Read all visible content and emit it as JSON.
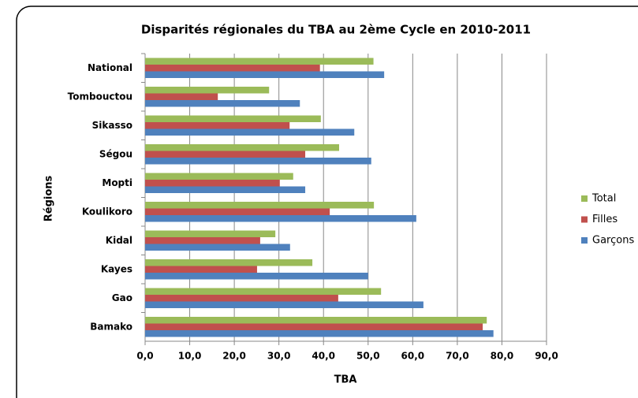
{
  "chart_data": {
    "type": "hbar",
    "title": "Disparités régionales du TBA au 2ème Cycle en 2010-2011",
    "xlabel": "TBA",
    "ylabel": "Régions",
    "categories": [
      "Bamako",
      "Gao",
      "Kayes",
      "Kidal",
      "Koulikoro",
      "Mopti",
      "Ségou",
      "Sikasso",
      "Tombouctou",
      "National"
    ],
    "series": [
      {
        "name": "Total",
        "color": "#9bbb59",
        "values": [
          76.6,
          52.9,
          37.5,
          29.2,
          51.3,
          33.2,
          43.5,
          39.4,
          27.8,
          51.2
        ]
      },
      {
        "name": "Filles",
        "color": "#c0504d",
        "values": [
          75.7,
          43.3,
          25.1,
          25.8,
          41.4,
          30.2,
          35.9,
          32.4,
          16.3,
          39.2
        ]
      },
      {
        "name": "Garçons",
        "color": "#4f81bd",
        "values": [
          78.1,
          62.4,
          50.0,
          32.5,
          60.8,
          35.9,
          50.7,
          46.9,
          34.7,
          53.6
        ]
      }
    ],
    "xlim": [
      0,
      90
    ],
    "xticks": [
      {
        "value": 0,
        "label": "0,0"
      },
      {
        "value": 10,
        "label": "10,0"
      },
      {
        "value": 20,
        "label": "20,0"
      },
      {
        "value": 30,
        "label": "30,0"
      },
      {
        "value": 40,
        "label": "40,0"
      },
      {
        "value": 50,
        "label": "50,0"
      },
      {
        "value": 60,
        "label": "60,0"
      },
      {
        "value": 70,
        "label": "70,0"
      },
      {
        "value": 80,
        "label": "80,0"
      },
      {
        "value": 90,
        "label": "90,0"
      }
    ],
    "grid": true,
    "legend": "right"
  }
}
